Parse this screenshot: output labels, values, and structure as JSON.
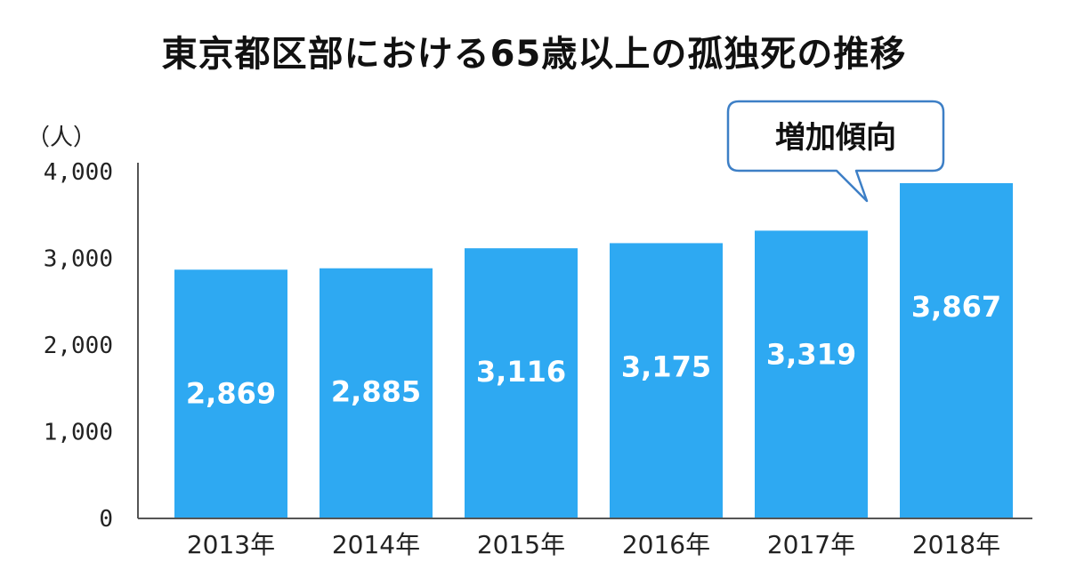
{
  "chart_data": {
    "type": "bar",
    "title": "東京都区部における65歳以上の孤独死の推移",
    "xlabel": "",
    "ylabel": "（人）",
    "ylim": [
      0,
      4000
    ],
    "yticks": [
      "0",
      "1,000",
      "2,000",
      "3,000",
      "4,000"
    ],
    "categories": [
      "2013年",
      "2014年",
      "2015年",
      "2016年",
      "2017年",
      "2018年"
    ],
    "values": [
      2869,
      2885,
      3116,
      3175,
      3319,
      3867
    ],
    "value_labels": [
      "2,869",
      "2,885",
      "3,116",
      "3,175",
      "3,319",
      "3,867"
    ],
    "bar_color": "#2ea9f2",
    "grid": false,
    "annotation": "増加傾向",
    "annotation_border_color": "#3d7fc6"
  }
}
